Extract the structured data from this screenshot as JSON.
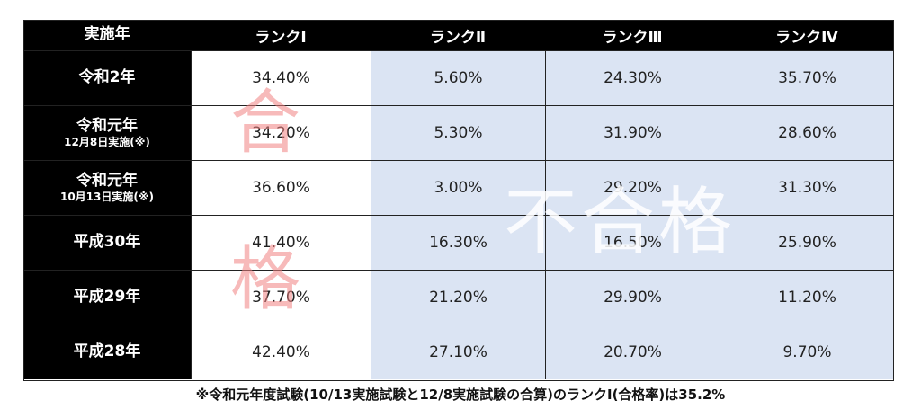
{
  "header": {
    "col0": "実施年",
    "col1": "ランクⅠ",
    "col2": "ランクⅡ",
    "col3": "ランクⅢ",
    "col4": "ランクⅣ"
  },
  "rows": [
    {
      "year": "令和2年",
      "sub": "",
      "r1": "34.40%",
      "r2": "5.60%",
      "r3": "24.30%",
      "r4": "35.70%"
    },
    {
      "year": "令和元年",
      "sub": "12月8日実施(※)",
      "r1": "34.20%",
      "r2": "5.30%",
      "r3": "31.90%",
      "r4": "28.60%"
    },
    {
      "year": "令和元年",
      "sub": "10月13日実施(※)",
      "r1": "36.60%",
      "r2": "3.00%",
      "r3": "29.20%",
      "r4": "31.30%"
    },
    {
      "year": "平成30年",
      "sub": "",
      "r1": "41.40%",
      "r2": "16.30%",
      "r3": "16.50%",
      "r4": "25.90%"
    },
    {
      "year": "平成29年",
      "sub": "",
      "r1": "37.70%",
      "r2": "21.20%",
      "r3": "29.90%",
      "r4": "11.20%"
    },
    {
      "year": "平成28年",
      "sub": "",
      "r1": "42.40%",
      "r2": "27.10%",
      "r3": "20.70%",
      "r4": "9.70%"
    }
  ],
  "watermark_pass": [
    "合",
    "格"
  ],
  "watermark_fail": "不合格",
  "footnote": "※令和元年度試験(10/13実施試験と12/8実施試験の合算)のランクⅠ(合格率)は35.2%",
  "colors": {
    "header_bg": "#000000",
    "shaded": "#dbe4f3",
    "pass_watermark": "#f08282"
  }
}
